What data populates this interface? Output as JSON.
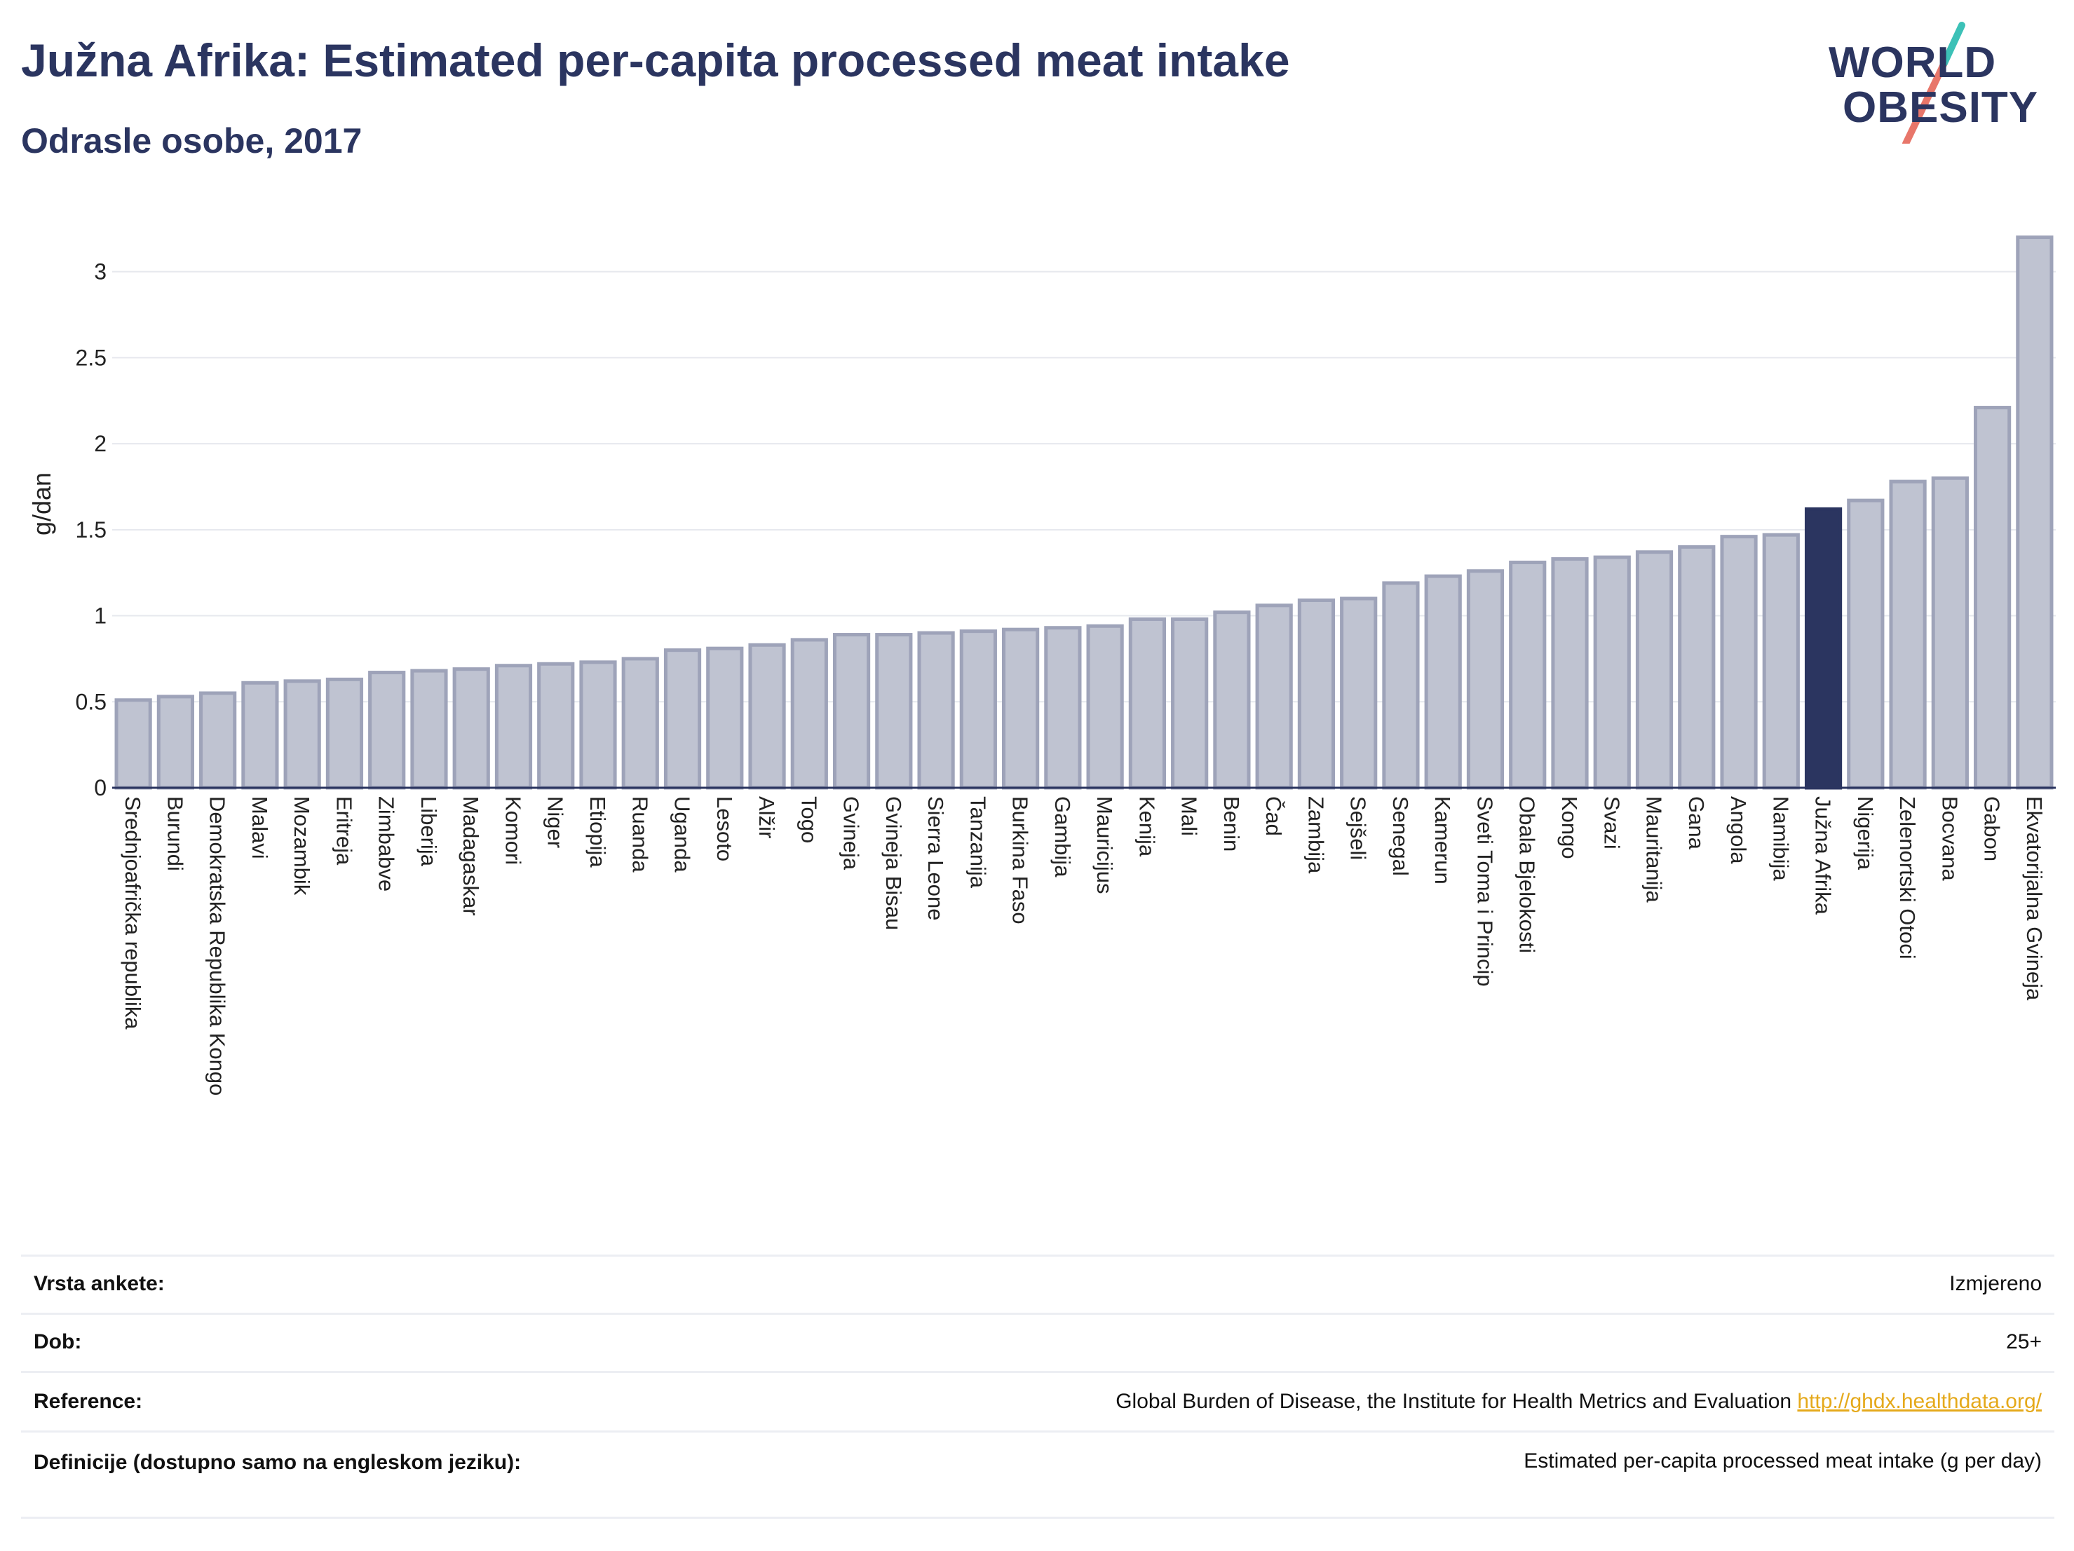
{
  "header": {
    "title": "Južna Afrika: Estimated per-capita processed meat intake",
    "subtitle": "Odrasle osobe, 2017"
  },
  "logo": {
    "line1": "WORLD",
    "line2": "OBESITY"
  },
  "colors": {
    "bar": "#bfc3d1",
    "bar_stroke": "#9ea3b9",
    "highlight": "#2b3560",
    "grid": "#e6e8ee",
    "title": "#2b3560",
    "link": "#e5a91b"
  },
  "chart_data": {
    "type": "bar",
    "ylabel": "g/dan",
    "ylim": [
      0,
      3.3
    ],
    "yticks": [
      0,
      0.5,
      1,
      1.5,
      2,
      2.5,
      3
    ],
    "ytick_labels": [
      "0",
      "0.5",
      "1",
      "1.5",
      "2",
      "2.5",
      "3"
    ],
    "grid": true,
    "highlight": "Južna Afrika",
    "categories": [
      "Srednjoafrička republika",
      "Burundi",
      "Demokratska Republika Kongo",
      "Malavi",
      "Mozambik",
      "Eritreja",
      "Zimbabve",
      "Liberija",
      "Madagaskar",
      "Komori",
      "Niger",
      "Etiopija",
      "Ruanda",
      "Uganda",
      "Lesoto",
      "Alžir",
      "Togo",
      "Gvineja",
      "Gvineja Bisau",
      "Sierra Leone",
      "Tanzanija",
      "Burkina Faso",
      "Gambija",
      "Mauricijus",
      "Kenija",
      "Mali",
      "Benin",
      "Čad",
      "Zambija",
      "Sejšeli",
      "Senegal",
      "Kamerun",
      "Sveti Toma i Princip",
      "Obala Bjelokosti",
      "Kongo",
      "Svazi",
      "Mauritanija",
      "Gana",
      "Angola",
      "Namibija",
      "Južna Afrika",
      "Nigerija",
      "Zelenortski Otoci",
      "Bocvana",
      "Gabon",
      "Ekvatorijalna Gvineja"
    ],
    "values": [
      0.51,
      0.53,
      0.55,
      0.61,
      0.62,
      0.63,
      0.67,
      0.68,
      0.69,
      0.71,
      0.72,
      0.73,
      0.75,
      0.8,
      0.81,
      0.83,
      0.86,
      0.89,
      0.89,
      0.9,
      0.91,
      0.92,
      0.93,
      0.94,
      0.98,
      0.98,
      1.02,
      1.06,
      1.09,
      1.1,
      1.19,
      1.23,
      1.26,
      1.31,
      1.33,
      1.34,
      1.37,
      1.4,
      1.46,
      1.47,
      1.62,
      1.67,
      1.78,
      1.8,
      2.21,
      3.2
    ]
  },
  "meta": {
    "rows": [
      {
        "key": "Vrsta ankete:",
        "value": "Izmjereno"
      },
      {
        "key": "Dob:",
        "value": "25+"
      },
      {
        "key": "Reference:",
        "value": "Global Burden of Disease, the Institute for Health Metrics and Evaluation ",
        "link": "http://ghdx.healthdata.org/"
      },
      {
        "key": "Definicije (dostupno samo na engleskom jeziku):",
        "value": "Estimated per-capita processed meat intake (g per day)"
      }
    ]
  }
}
